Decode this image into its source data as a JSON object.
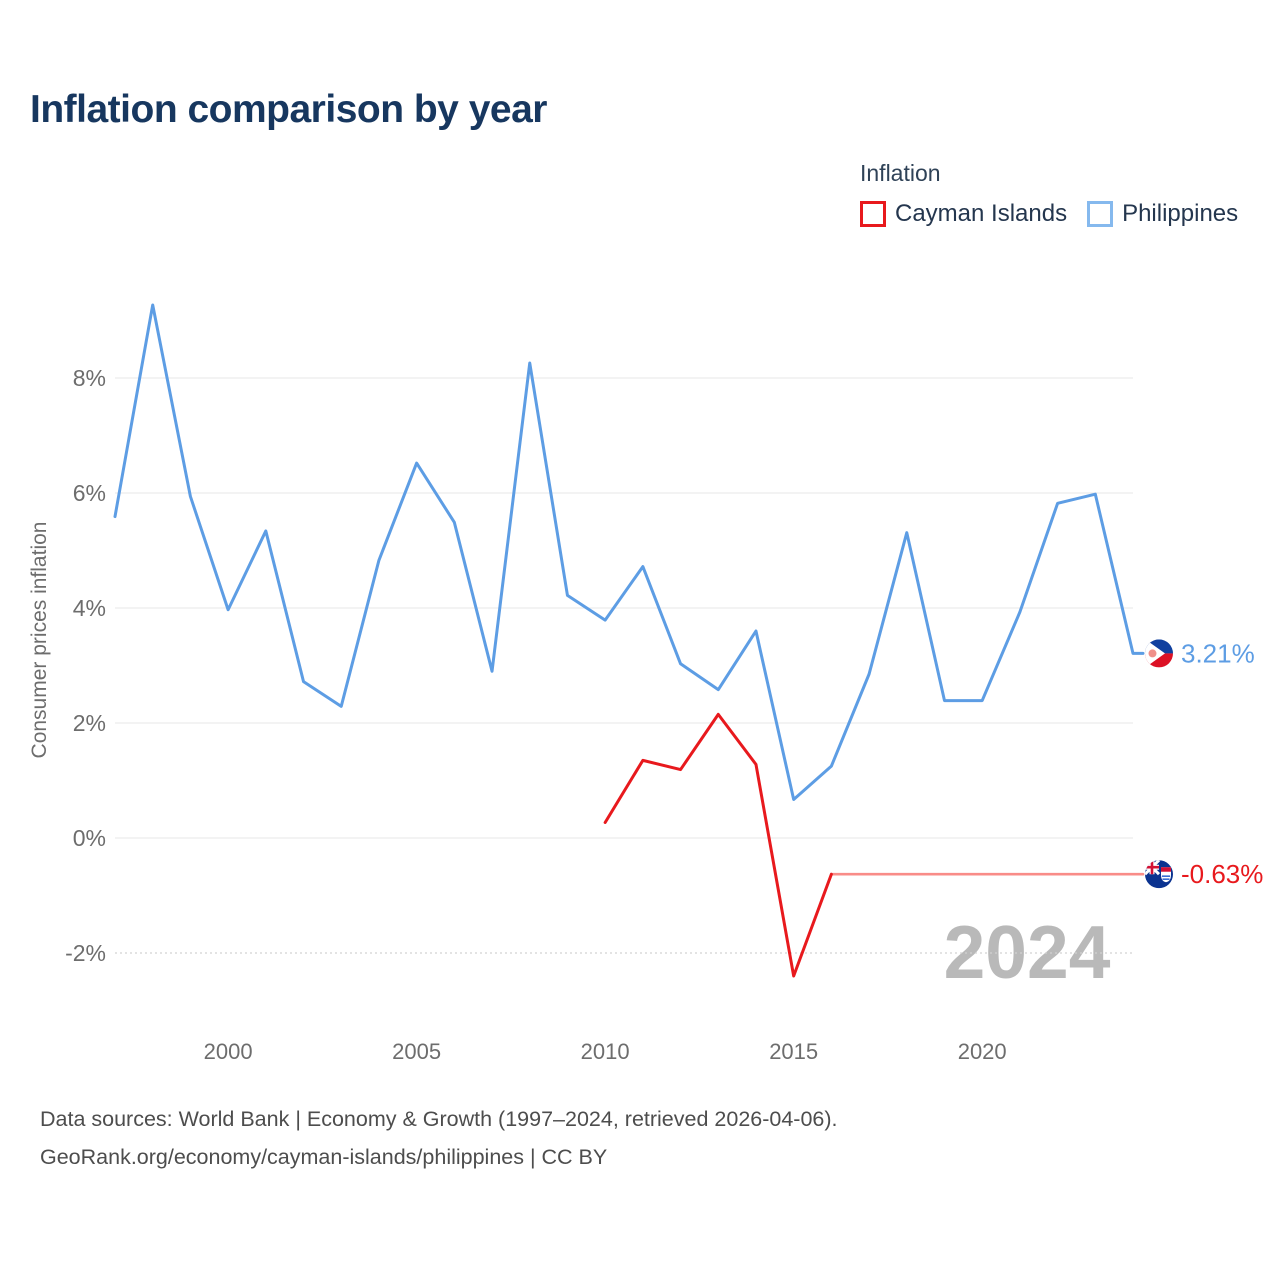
{
  "legend": {
    "title": "Inflation"
  },
  "footer": {
    "line1": "Data sources: World Bank | Economy & Growth (1997–2024, retrieved 2026-04-06).",
    "line2": "GeoRank.org/economy/cayman-islands/philippines | CC BY"
  },
  "chart_data": {
    "type": "line",
    "title": "Inflation comparison by year",
    "xlabel": "",
    "ylabel": "Consumer prices inflation",
    "xlim": [
      1997,
      2024
    ],
    "ylim": [
      -3.2,
      9.6
    ],
    "grid": "horizontal",
    "legend_position": "top-right",
    "watermark": "2024",
    "x_ticks": [
      {
        "value": 2000,
        "label": "2000"
      },
      {
        "value": 2005,
        "label": "2005"
      },
      {
        "value": 2010,
        "label": "2010"
      },
      {
        "value": 2015,
        "label": "2015"
      },
      {
        "value": 2020,
        "label": "2020"
      }
    ],
    "y_ticks": [
      {
        "value": 8,
        "label": "8%"
      },
      {
        "value": 6,
        "label": "6%"
      },
      {
        "value": 4,
        "label": "4%"
      },
      {
        "value": 2,
        "label": "2%"
      },
      {
        "value": 0,
        "label": "0%"
      },
      {
        "value": -2,
        "label": "-2%"
      }
    ],
    "series": [
      {
        "name": "Cayman Islands",
        "color": "#e8191d",
        "legend_color": "#e8191d",
        "flag": "cayman-islands",
        "end_label": "-0.63%",
        "x": [
          2010,
          2011,
          2012,
          2013,
          2014,
          2015,
          2016
        ],
        "values": [
          0.27,
          1.35,
          1.19,
          2.15,
          1.28,
          -2.4,
          -0.63
        ],
        "extension": {
          "note": "forward-filled flat segment",
          "color": "#f98c88",
          "x": [
            2016,
            2024
          ],
          "values": [
            -0.63,
            -0.63
          ]
        }
      },
      {
        "name": "Philippines",
        "color": "#5d9de4",
        "legend_color": "#85b9ee",
        "flag": "philippines",
        "end_label": "3.21%",
        "x": [
          1997,
          1998,
          1999,
          2000,
          2001,
          2002,
          2003,
          2004,
          2005,
          2006,
          2007,
          2008,
          2009,
          2010,
          2011,
          2012,
          2013,
          2014,
          2015,
          2016,
          2017,
          2018,
          2019,
          2020,
          2021,
          2022,
          2023,
          2024
        ],
        "values": [
          5.59,
          9.27,
          5.94,
          3.97,
          5.34,
          2.72,
          2.29,
          4.83,
          6.52,
          5.49,
          2.9,
          8.26,
          4.22,
          3.79,
          4.72,
          3.03,
          2.58,
          3.6,
          0.67,
          1.25,
          2.85,
          5.31,
          2.39,
          2.39,
          3.93,
          5.82,
          5.98,
          3.21
        ]
      }
    ]
  }
}
